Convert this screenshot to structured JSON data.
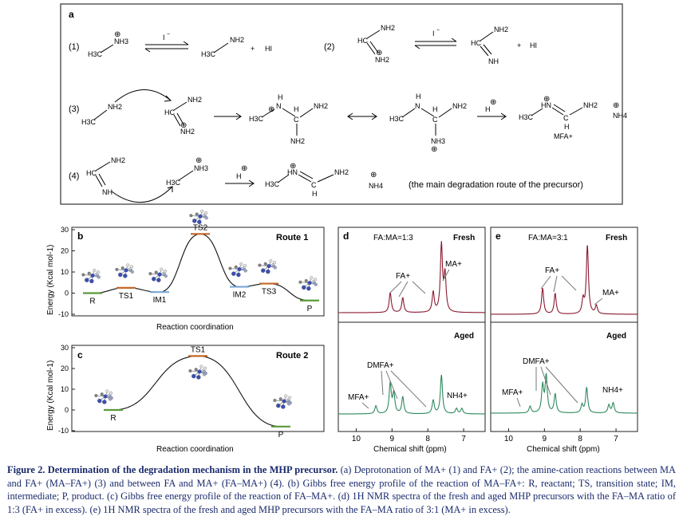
{
  "panel_a": {
    "label": "a",
    "r1": {
      "num": "(1)",
      "left": "H3C",
      "left_nh3": "NH3",
      "cat": "⊕",
      "iodide": "I",
      "iodide_sup": "−",
      "prod": "H3C",
      "prod_nh2": "NH2",
      "plus": "+",
      "hi": "HI"
    },
    "r2": {
      "num": "(2)",
      "hc": "HC",
      "nh2_top": "NH2",
      "nh2_bot": "NH2",
      "cat": "⊕",
      "iodide": "I",
      "iodide_sup": "−",
      "prod_hc": "HC",
      "prod_nh2": "NH2",
      "prod_nh": "NH",
      "plus": "+",
      "hi": "HI"
    },
    "r3": {
      "num": "(3)",
      "ma": "H3C",
      "ma_nh2": "NH2",
      "fa_hc": "HC",
      "fa_nh2_top": "NH2",
      "fa_nh2_bot": "NH2",
      "cat": "⊕",
      "im1_h3c": "H3C",
      "im1_nh2h": "H",
      "im1_n": "N",
      "im1_h": "H",
      "im1_c": "C",
      "im1_nh2_r": "NH2",
      "im1_nh2_b": "NH2",
      "im2_h3c": "H3C",
      "im2_h": "H",
      "im2_n": "N",
      "im2_hc": "H",
      "im2_c": "C",
      "im2_nh2_r": "NH2",
      "im2_nh3": "NH3",
      "h_plus": "H",
      "p_h3c": "H3C",
      "p_hn": "HN",
      "p_c": "C",
      "p_h": "H",
      "p_nh2": "NH2",
      "p_label": "MFA+",
      "nh4": "NH4"
    },
    "r4": {
      "num": "(4)",
      "hc": "HC",
      "nh2": "NH2",
      "nh": "NH",
      "ma": "H3C",
      "ma_nh3": "NH3",
      "h_plus": "H",
      "p_h3c": "H3C",
      "p_hn": "HN",
      "p_c": "C",
      "p_h": "H",
      "p_nh2": "NH2",
      "nh4": "NH4",
      "note": "(the main degradation route of the precursor)"
    }
  },
  "chart_data": [
    {
      "panel": "b",
      "type": "line",
      "title": "Route 1",
      "ylabel": "Energy (Kcal mol-1)",
      "xlabel": "Reaction coordination",
      "ylim": [
        -10,
        30
      ],
      "yticks": [
        -10,
        0,
        10,
        20,
        30
      ],
      "states": [
        {
          "label": "R",
          "energy": 0
        },
        {
          "label": "TS1",
          "energy": 2.5
        },
        {
          "label": "IM1",
          "energy": 0.5
        },
        {
          "label": "TS2",
          "energy": 28
        },
        {
          "label": "IM2",
          "energy": 3
        },
        {
          "label": "TS3",
          "energy": 4.5
        },
        {
          "label": "P",
          "energy": -3.5
        }
      ]
    },
    {
      "panel": "c",
      "type": "line",
      "title": "Route 2",
      "ylabel": "Energy (Kcal mol-1)",
      "xlabel": "Reaction coordination",
      "ylim": [
        -10,
        30
      ],
      "yticks": [
        -10,
        0,
        10,
        20,
        30
      ],
      "states": [
        {
          "label": "R",
          "energy": 0
        },
        {
          "label": "TS1",
          "energy": 26
        },
        {
          "label": "P",
          "energy": -8
        }
      ]
    },
    {
      "panel": "d",
      "type": "line",
      "title": "FA:MA=1:3",
      "xlabel": "Chemical shift (ppm)",
      "xlim": [
        10.5,
        6.4
      ],
      "xticks": [
        10,
        9,
        8,
        7
      ],
      "series": [
        {
          "name": "Fresh",
          "color": "#8a1a2e",
          "peaks": [
            {
              "x": 9.05,
              "h": 0.3
            },
            {
              "x": 8.7,
              "h": 0.22
            },
            {
              "x": 7.85,
              "h": 0.3
            },
            {
              "x": 7.62,
              "h": 1.0
            },
            {
              "x": 7.52,
              "h": 0.55
            }
          ],
          "annotations": [
            "FA+",
            "MA+"
          ]
        },
        {
          "name": "Aged",
          "color": "#2e8a5e",
          "peaks": [
            {
              "x": 9.45,
              "h": 0.12
            },
            {
              "x": 9.05,
              "h": 0.45
            },
            {
              "x": 8.95,
              "h": 0.3
            },
            {
              "x": 8.7,
              "h": 0.25
            },
            {
              "x": 7.85,
              "h": 0.2
            },
            {
              "x": 7.62,
              "h": 0.58
            },
            {
              "x": 7.2,
              "h": 0.08
            },
            {
              "x": 7.05,
              "h": 0.08
            }
          ],
          "annotations": [
            "MFA+",
            "DMFA+",
            "NH4+"
          ]
        }
      ]
    },
    {
      "panel": "e",
      "type": "line",
      "title": "FA:MA=3:1",
      "xlabel": "Chemical shift (ppm)",
      "xlim": [
        10.5,
        6.4
      ],
      "xticks": [
        10,
        9,
        8,
        7
      ],
      "series": [
        {
          "name": "Fresh",
          "color": "#8a1a2e",
          "peaks": [
            {
              "x": 9.05,
              "h": 0.38
            },
            {
              "x": 8.7,
              "h": 0.3
            },
            {
              "x": 7.92,
              "h": 0.2
            },
            {
              "x": 7.8,
              "h": 1.0
            },
            {
              "x": 7.55,
              "h": 0.12
            }
          ],
          "annotations": [
            "FA+",
            "MA+"
          ]
        },
        {
          "name": "Aged",
          "color": "#2e8a5e",
          "peaks": [
            {
              "x": 9.4,
              "h": 0.1
            },
            {
              "x": 9.05,
              "h": 0.4
            },
            {
              "x": 8.95,
              "h": 0.55
            },
            {
              "x": 8.7,
              "h": 0.28
            },
            {
              "x": 7.95,
              "h": 0.12
            },
            {
              "x": 7.82,
              "h": 0.38
            },
            {
              "x": 7.2,
              "h": 0.12
            },
            {
              "x": 7.08,
              "h": 0.15
            }
          ],
          "annotations": [
            "MFA+",
            "DMFA+",
            "NH4+"
          ]
        }
      ]
    }
  ],
  "labels": {
    "b": "b",
    "c": "c",
    "d": "d",
    "e": "e",
    "fresh": "Fresh",
    "aged": "Aged",
    "fa_plus": "FA+",
    "ma_plus": "MA+",
    "dmfa_plus": "DMFA+",
    "mfa_plus": "MFA+",
    "nh4_plus": "NH4+"
  },
  "caption": {
    "fig": "Figure 2. Determination of the degradation mechanism in the MHP precursor.",
    "text": " (a) Deprotonation of MA+ (1) and FA+ (2); the amine-cation reactions between MA and FA+ (MA–FA+) (3) and between FA and MA+ (FA–MA+) (4). (b) Gibbs free energy profile of the reaction of MA–FA+: R, reactant; TS, transition state; IM, intermediate; P, product. (c) Gibbs free energy profile of the reaction of FA–MA+. (d) 1H NMR spectra of the fresh and aged MHP precursors with the FA–MA ratio of 1:3 (FA+ in excess). (e) 1H NMR spectra of the fresh and aged MHP precursors with the FA–MA ratio of 3:1 (MA+ in excess)."
  }
}
